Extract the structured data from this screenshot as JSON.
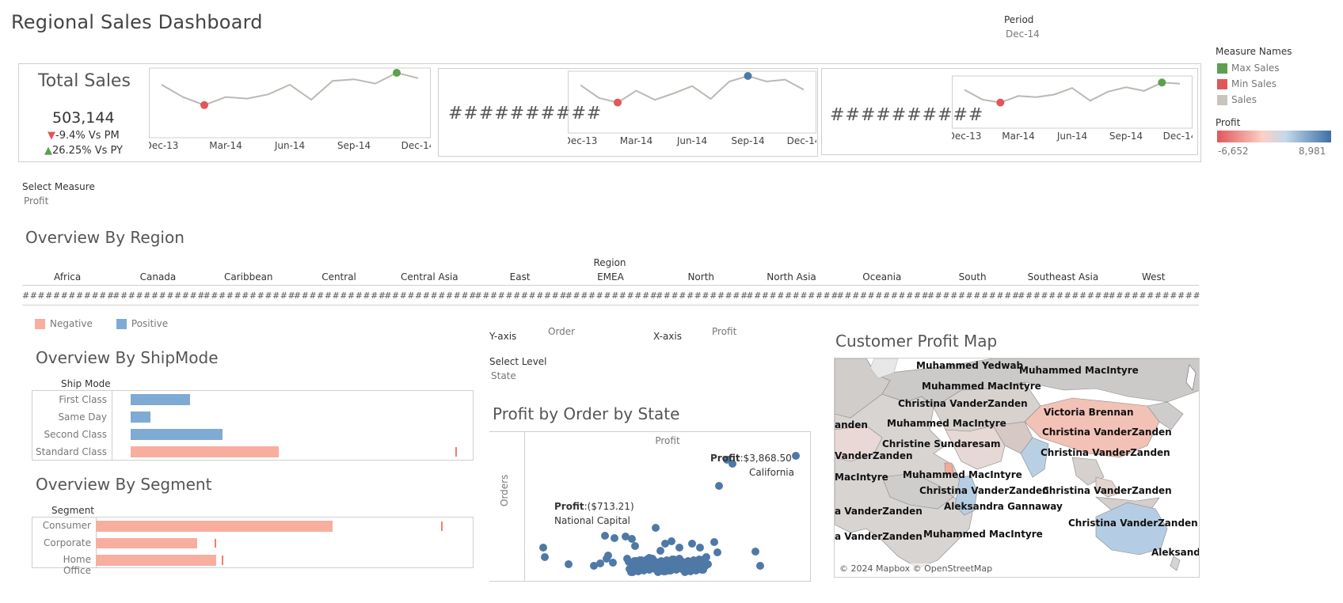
{
  "dashboard": {
    "title": "Regional Sales Dashboard"
  },
  "period": {
    "label": "Period",
    "value": "Dec-14"
  },
  "legend": {
    "title": "Measure Names",
    "items": [
      {
        "label": "Max Sales",
        "color": "#59a14f"
      },
      {
        "label": "Min Sales",
        "color": "#e15759"
      },
      {
        "label": "Sales",
        "color": "#c9c4bd"
      }
    ]
  },
  "profit_legend": {
    "title": "Profit",
    "min": "-6,652",
    "max": "8,981",
    "colors": [
      "#e15759",
      "#fbd0c6",
      "#c4d8ea",
      "#3f6fa5"
    ]
  },
  "kpi": {
    "title": "Total Sales",
    "value": "503,144",
    "vs_pm": "-9.4% Vs PM",
    "vs_py": "26.25% Vs PY",
    "down_arrow": "▼",
    "up_arrow": "▲",
    "masked_1": "##########",
    "masked_2": "##########"
  },
  "sparklines": {
    "x_ticks": [
      "Dec-13",
      "Mar-14",
      "Jun-14",
      "Sep-14",
      "Dec-14"
    ],
    "series": [
      {
        "values": [
          0.78,
          0.55,
          0.4,
          0.55,
          0.52,
          0.6,
          0.78,
          0.5,
          0.85,
          0.88,
          0.8,
          1.0,
          0.9
        ],
        "min_index": 2,
        "max_index": 11
      },
      {
        "values": [
          0.8,
          0.52,
          0.42,
          0.68,
          0.48,
          0.62,
          0.78,
          0.5,
          0.88,
          1.0,
          0.88,
          0.92,
          0.7
        ],
        "min_index": 2,
        "max_index": 9
      },
      {
        "values": [
          0.75,
          0.48,
          0.4,
          0.58,
          0.55,
          0.62,
          0.8,
          0.45,
          0.7,
          0.82,
          0.72,
          0.95,
          0.92
        ],
        "min_index": 2,
        "max_index": 11
      }
    ]
  },
  "select_measure": {
    "label": "Select Measure",
    "value": "Profit"
  },
  "overview_region": {
    "title": "Overview By Region",
    "header": "Region",
    "regions": [
      "Africa",
      "Canada",
      "Caribbean",
      "Central",
      "Central Asia",
      "East",
      "EMEA",
      "North",
      "North Asia",
      "Oceania",
      "South",
      "Southeast Asia",
      "West"
    ],
    "cell_value": "############"
  },
  "neg_pos_legend": [
    {
      "label": "Negative",
      "color": "#f8ae9f"
    },
    {
      "label": "Positive",
      "color": "#7eaad4"
    }
  ],
  "shipmode": {
    "title": "Overview By ShipMode",
    "header": "Ship Mode",
    "items": [
      {
        "label": "First Class",
        "value": 0.18,
        "sign": "positive",
        "ref": null
      },
      {
        "label": "Same Day",
        "value": 0.06,
        "sign": "positive",
        "ref": null
      },
      {
        "label": "Second Class",
        "value": 0.28,
        "sign": "positive",
        "ref": null
      },
      {
        "label": "Standard Class",
        "value": 0.45,
        "sign": "negative",
        "ref": 1.0
      }
    ]
  },
  "segment": {
    "title": "Overview By Segment",
    "header": "Segment",
    "items": [
      {
        "label": "Consumer",
        "value": 0.63,
        "sign": "negative",
        "ref": 0.96
      },
      {
        "label": "Corporate",
        "value": 0.27,
        "sign": "negative",
        "ref": 0.33
      },
      {
        "label": "Home Office",
        "value": 0.32,
        "sign": "negative",
        "ref": 0.35
      }
    ]
  },
  "scatter_controls": {
    "y_axis_label": "Y-axis",
    "y_axis_value": "Order",
    "x_axis_label": "X-axis",
    "x_axis_value": "Profit",
    "select_level_label": "Select Level",
    "select_level_value": "State"
  },
  "scatter": {
    "title": "Profit by Order by State",
    "x_header": "Profit",
    "y_label": "Orders",
    "point_color": "#4e79a7",
    "annotation_1": {
      "bold": "Profit",
      "value": ":$3,868.50",
      "name": "California"
    },
    "annotation_2": {
      "bold": "Profit",
      "value": ":($713.21)",
      "name": "National Capital"
    }
  },
  "map": {
    "title": "Customer Profit Map",
    "attribution": "© 2024 Mapbox © OpenStreetMap",
    "labels": [
      "Muhammed Yedwab",
      "Muhammed MacIntyre",
      "Muhammed MacIntyre",
      "Christina VanderZanden",
      "Victoria Brennan",
      "anden",
      "Muhammed MacIntyre",
      "Christina VanderZanden",
      "Christine Sundaresam",
      "Christina VanderZanden",
      "VanderZanden",
      "Muhammed MacIntyre",
      "MacIntyre",
      "Christina VanderZanden",
      "Christina VanderZanden",
      "Aleksandra Gannaway",
      "a VanderZanden",
      "Christina VanderZanden",
      "a VanderZanden",
      "Muhammed MacIntyre",
      "Aleksandra Gann"
    ]
  }
}
